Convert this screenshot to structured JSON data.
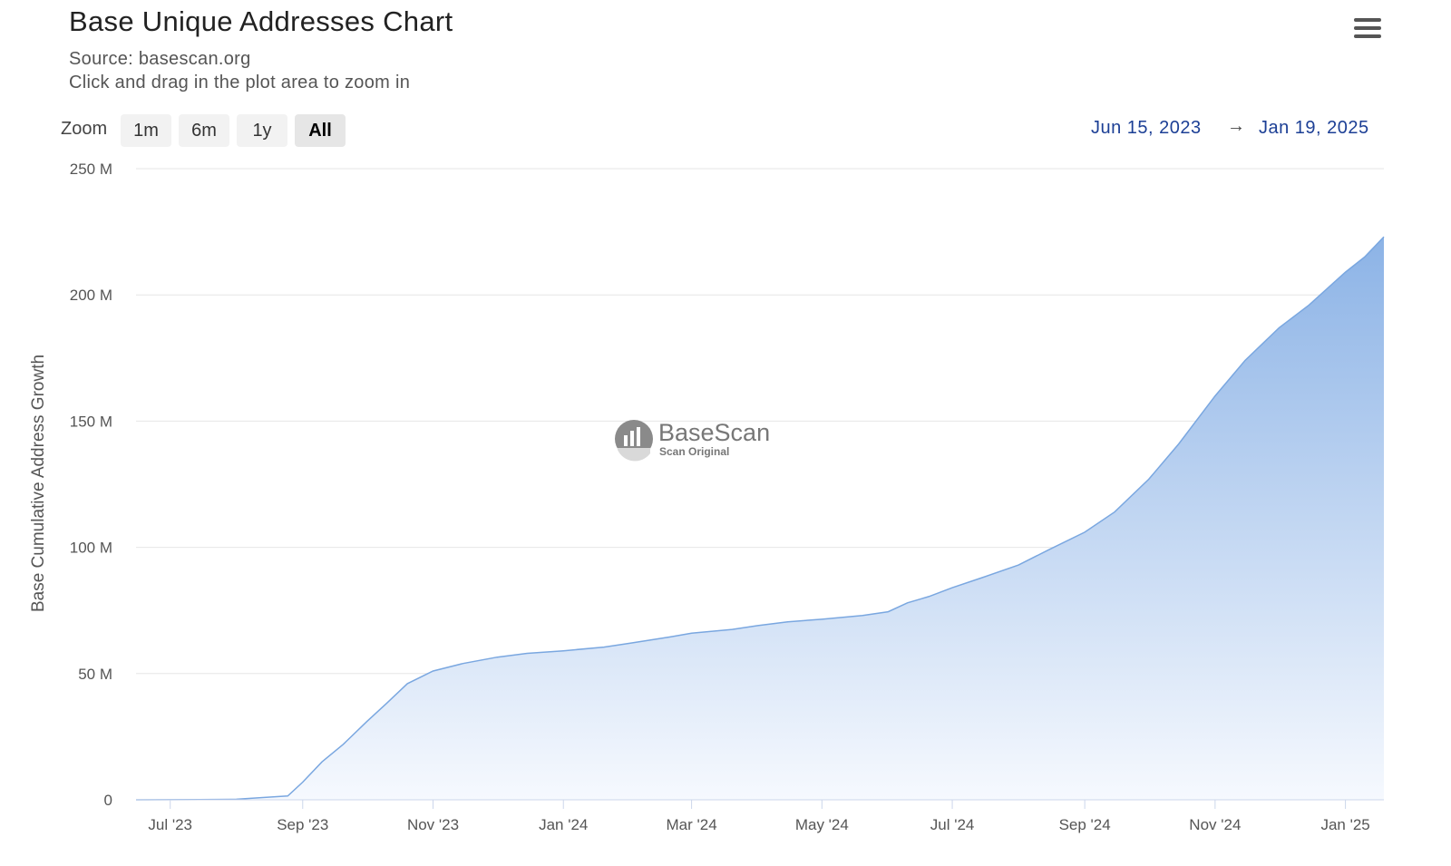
{
  "title": "Base Unique Addresses Chart",
  "subtitle_source": "Source: basescan.org",
  "subtitle_hint": "Click and drag in the plot area to zoom in",
  "menu_icon": "hamburger-menu-icon",
  "zoom": {
    "label": "Zoom",
    "buttons": [
      "1m",
      "6m",
      "1y",
      "All"
    ],
    "active": "All"
  },
  "range": {
    "from": "Jun 15, 2023",
    "arrow": "→",
    "to": "Jan 19, 2025"
  },
  "watermark": {
    "name": "BaseScan",
    "tagline": "Scan Original",
    "icon": "basescan-logo-icon"
  },
  "colors": {
    "line": "#7aa7e0",
    "fill_top": "#8cb3e6",
    "fill_bottom": "#f6f9fe",
    "range_text": "#1c3f95"
  },
  "chart_data": {
    "type": "area",
    "ylabel": "Base Cumulative Address Growth",
    "xlabel": "",
    "ylim": [
      0,
      250
    ],
    "y_unit": "M",
    "y_ticks": [
      "0",
      "50 M",
      "100 M",
      "150 M",
      "200 M",
      "250 M"
    ],
    "x_ticks": [
      "Jul '23",
      "Sep '23",
      "Nov '23",
      "Jan '24",
      "Mar '24",
      "May '24",
      "Jul '24",
      "Sep '24",
      "Nov '24",
      "Jan '25"
    ],
    "x_tick_dates": [
      "2023-07-01",
      "2023-09-01",
      "2023-11-01",
      "2024-01-01",
      "2024-03-01",
      "2024-05-01",
      "2024-07-01",
      "2024-09-01",
      "2024-11-01",
      "2025-01-01"
    ],
    "x_range": [
      "2023-06-15",
      "2025-01-19"
    ],
    "grid": true,
    "legend": "none",
    "series": [
      {
        "values_unit": "millions",
        "points": [
          [
            "2023-06-15",
            0
          ],
          [
            "2023-07-15",
            0.1
          ],
          [
            "2023-08-01",
            0.2
          ],
          [
            "2023-08-15",
            1.0
          ],
          [
            "2023-08-25",
            1.5
          ],
          [
            "2023-09-01",
            7
          ],
          [
            "2023-09-10",
            15
          ],
          [
            "2023-09-20",
            22
          ],
          [
            "2023-10-01",
            31
          ],
          [
            "2023-10-10",
            38
          ],
          [
            "2023-10-20",
            46
          ],
          [
            "2023-11-01",
            51
          ],
          [
            "2023-11-15",
            54
          ],
          [
            "2023-12-01",
            56.5
          ],
          [
            "2023-12-15",
            58
          ],
          [
            "2024-01-01",
            59
          ],
          [
            "2024-01-20",
            60.5
          ],
          [
            "2024-02-01",
            62
          ],
          [
            "2024-02-20",
            64.5
          ],
          [
            "2024-03-01",
            66
          ],
          [
            "2024-03-20",
            67.5
          ],
          [
            "2024-04-01",
            69
          ],
          [
            "2024-04-15",
            70.5
          ],
          [
            "2024-05-01",
            71.5
          ],
          [
            "2024-05-20",
            73
          ],
          [
            "2024-06-01",
            74.5
          ],
          [
            "2024-06-10",
            78
          ],
          [
            "2024-06-20",
            80.5
          ],
          [
            "2024-07-01",
            84
          ],
          [
            "2024-07-15",
            88
          ],
          [
            "2024-08-01",
            93
          ],
          [
            "2024-08-15",
            99
          ],
          [
            "2024-09-01",
            106
          ],
          [
            "2024-09-15",
            114
          ],
          [
            "2024-10-01",
            127
          ],
          [
            "2024-10-15",
            141
          ],
          [
            "2024-11-01",
            160
          ],
          [
            "2024-11-15",
            174
          ],
          [
            "2024-12-01",
            187
          ],
          [
            "2024-12-15",
            196
          ],
          [
            "2025-01-01",
            209
          ],
          [
            "2025-01-10",
            215
          ],
          [
            "2025-01-19",
            223
          ]
        ]
      }
    ]
  }
}
